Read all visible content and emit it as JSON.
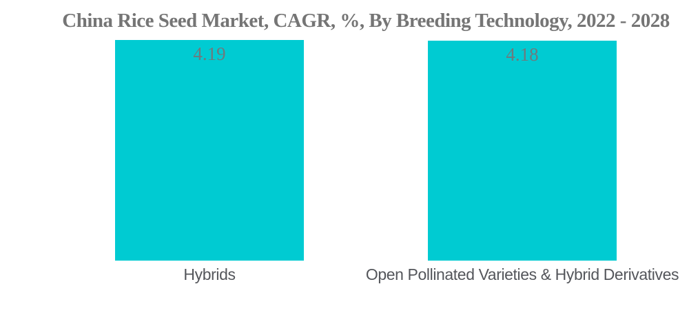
{
  "chart": {
    "background_color": "#ffffff",
    "bar_color": "#00CBD2",
    "title_color": "#757575",
    "value_label_color": "#6e7a7d",
    "category_label_color": "#54565b"
  },
  "chart_data": {
    "type": "bar",
    "title": "China Rice Seed Market, CAGR, %, By Breeding Technology, 2022 - 2028",
    "categories": [
      "Hybrids",
      "Open Pollinated Varieties & Hybrid Derivatives"
    ],
    "values": [
      4.19,
      4.18
    ],
    "value_labels": [
      "4.19",
      "4.18"
    ],
    "xlabel": "",
    "ylabel": "",
    "ylim": [
      0,
      4.19
    ],
    "grid": false,
    "legend_position": "none",
    "axes_visible": false,
    "bar_color": "#00CBD2"
  }
}
